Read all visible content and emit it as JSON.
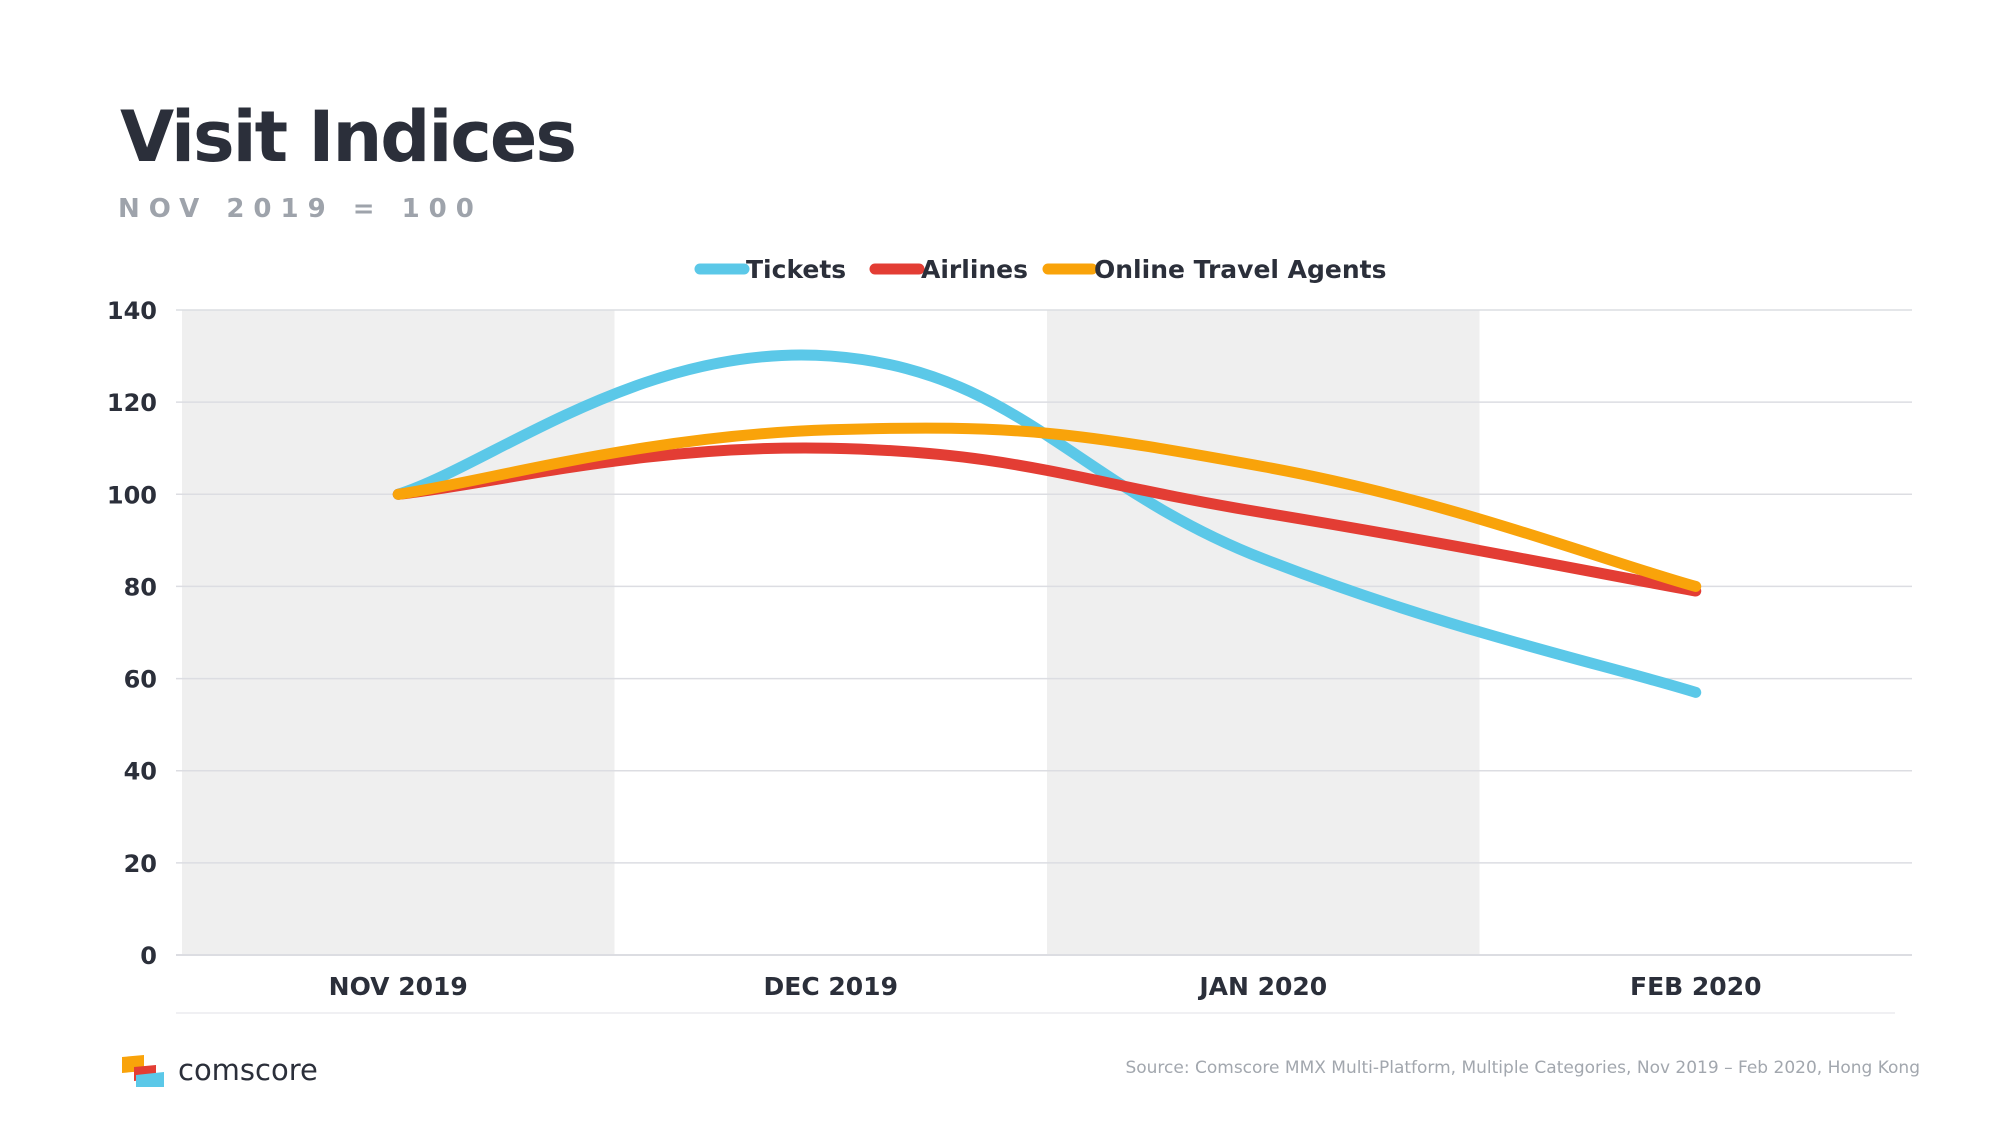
{
  "page": {
    "title": "Visit Indices",
    "subtitle": "NOV 2019 = 100",
    "brand": "comscore",
    "source": "Source: Comscore MMX Multi-Platform, Multiple Categories, Nov 2019 – Feb 2020, Hong Kong"
  },
  "colors": {
    "title": "#2b2f3a",
    "subtitle": "#9ea3ab",
    "band": "#efefef",
    "grid": "#dcdde2",
    "source": "#a2a7ae"
  },
  "chart_data": {
    "type": "line",
    "smooth": true,
    "categories": [
      "NOV 2019",
      "DEC 2019",
      "JAN 2020",
      "FEB 2020"
    ],
    "series": [
      {
        "name": "Tickets",
        "values": [
          100,
          130,
          86,
          57
        ],
        "color": "#5bc8e8"
      },
      {
        "name": "Airlines",
        "values": [
          100,
          110,
          96,
          79
        ],
        "color": "#e33d34"
      },
      {
        "name": "Online Travel Agents",
        "values": [
          100,
          114,
          106,
          80
        ],
        "color": "#f9a30a"
      }
    ],
    "ylim": [
      0,
      140
    ],
    "yticks": [
      "0",
      "20",
      "40",
      "60",
      "80",
      "100",
      "120",
      "140"
    ],
    "grid": true,
    "shaded_bands": [
      "NOV 2019",
      "JAN 2020"
    ],
    "legend": "top-center"
  }
}
